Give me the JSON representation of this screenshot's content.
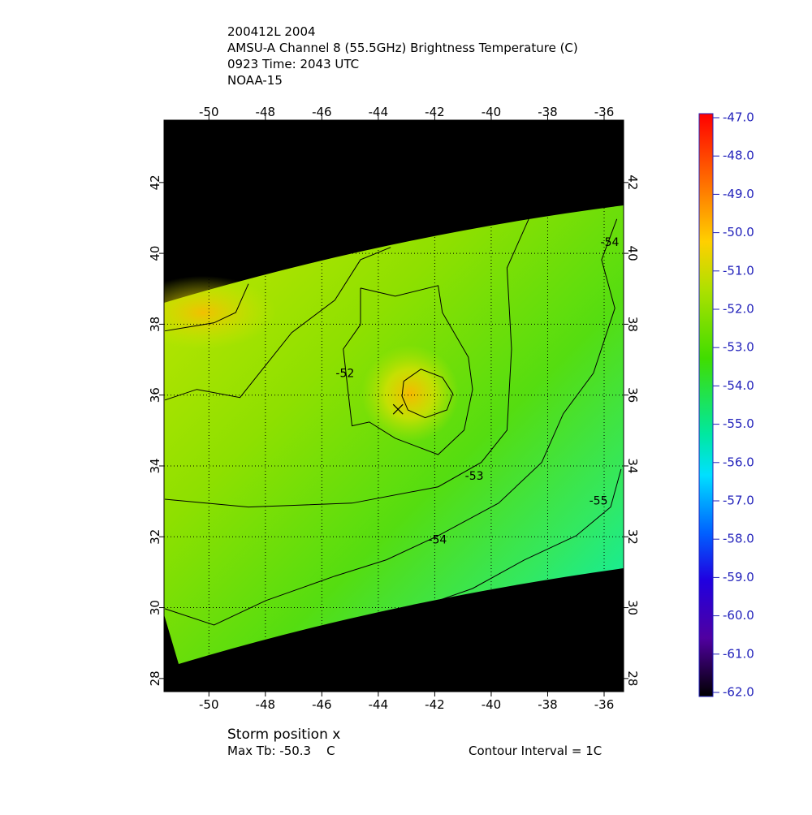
{
  "chart_data": {
    "type": "contour",
    "title_lines": [
      "200412L 2004",
      "AMSU-A Channel 8 (55.5GHz) Brightness Temperature (C)",
      "0923 Time: 2043 UTC",
      "NOAA-15"
    ],
    "xlim": [
      -51.59,
      -35.31
    ],
    "ylim": [
      27.63,
      43.76
    ],
    "xticks": [
      -50,
      -48,
      -46,
      -44,
      -42,
      -40,
      -38,
      -36
    ],
    "yticks": [
      28,
      30,
      32,
      34,
      36,
      38,
      40,
      42
    ],
    "grid": true,
    "contours": [
      {
        "level": -51,
        "lon": [
          -51.56,
          -49.82,
          -49.05,
          -48.6
        ],
        "lat": [
          37.81,
          38.04,
          38.33,
          39.14
        ]
      },
      {
        "level": -51,
        "lon": [
          -43.1,
          -42.49,
          -41.73,
          -41.36,
          -41.57,
          -42.34,
          -42.95,
          -43.16,
          -43.1
        ],
        "lat": [
          36.39,
          36.73,
          36.5,
          36.04,
          35.58,
          35.36,
          35.58,
          35.97,
          36.39
        ]
      },
      {
        "level": -52,
        "lon": [
          -44.63,
          -43.4,
          -41.88,
          -41.73,
          -40.81,
          -40.66,
          -40.96,
          -41.88,
          -43.4,
          -44.32,
          -44.93,
          -45.08,
          -45.24,
          -44.63,
          -44.63
        ],
        "lat": [
          39.02,
          38.79,
          39.09,
          38.33,
          37.07,
          36.16,
          35.01,
          34.32,
          34.78,
          35.24,
          35.13,
          36.16,
          37.3,
          37.99,
          39.02
        ]
      },
      {
        "level": -52,
        "lon": [
          -51.56,
          -50.43,
          -48.9,
          -47.07,
          -45.54,
          -44.63,
          -43.56
        ],
        "lat": [
          35.86,
          36.16,
          35.93,
          37.76,
          38.68,
          39.82,
          40.17
        ]
      },
      {
        "level": -53,
        "lon": [
          -51.56,
          -48.6,
          -44.93,
          -41.88,
          -40.35,
          -39.44,
          -39.28,
          -39.44,
          -38.67
        ],
        "lat": [
          33.06,
          32.84,
          32.95,
          33.41,
          34.1,
          35.01,
          37.3,
          39.59,
          40.97
        ]
      },
      {
        "level": -54,
        "lon": [
          -51.56,
          -49.82,
          -47.98,
          -45.54,
          -43.71,
          -41.88,
          -39.74,
          -38.21,
          -37.45,
          -36.38,
          -35.62,
          -36.09,
          -35.55
        ],
        "lat": [
          29.97,
          29.51,
          30.2,
          30.89,
          31.35,
          32.03,
          32.95,
          34.1,
          35.47,
          36.62,
          38.45,
          39.82,
          40.97
        ]
      },
      {
        "level": -55,
        "lon": [
          -41.88,
          -40.66,
          -38.82,
          -36.99,
          -35.77,
          -35.4
        ],
        "lat": [
          30.2,
          30.54,
          31.35,
          32.03,
          32.84,
          33.91
        ]
      }
    ],
    "contour_labels": [
      {
        "text": -52,
        "lon": -45.18,
        "lat": 36.6
      },
      {
        "text": -53,
        "lon": -40.6,
        "lat": 33.7
      },
      {
        "text": -54,
        "lon": -41.9,
        "lat": 31.9
      },
      {
        "text": -54,
        "lon": -35.8,
        "lat": 40.3
      },
      {
        "text": -55,
        "lon": -36.2,
        "lat": 33.0
      }
    ],
    "storm_position": {
      "lon": -43.3,
      "lat": 35.6
    },
    "colorbar": {
      "lim": [
        -62,
        -47
      ],
      "ticks": [
        {
          "value": -47,
          "label": "-47.0"
        },
        {
          "value": -48,
          "label": "-48.0"
        },
        {
          "value": -49,
          "label": "-49.0"
        },
        {
          "value": -50,
          "label": "-50.0"
        },
        {
          "value": -51,
          "label": "-51.0"
        },
        {
          "value": -52,
          "label": "-52.0"
        },
        {
          "value": -53,
          "label": "-53.0"
        },
        {
          "value": -54,
          "label": "-54.0"
        },
        {
          "value": -55,
          "label": "-55.0"
        },
        {
          "value": -56,
          "label": "-56.0"
        },
        {
          "value": -57,
          "label": "-57.0"
        },
        {
          "value": -58,
          "label": "-58.0"
        },
        {
          "value": -59,
          "label": "-59.0"
        },
        {
          "value": -60,
          "label": "-60.0"
        },
        {
          "value": -61,
          "label": "-61.0"
        },
        {
          "value": -62,
          "label": "-62.0"
        }
      ]
    },
    "footer": {
      "storm_label": "Storm position x",
      "max_tb": "Max Tb: -50.3    C",
      "interval": "Contour Interval = 1C"
    }
  }
}
